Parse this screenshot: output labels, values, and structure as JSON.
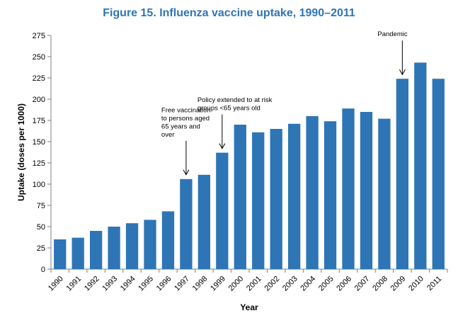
{
  "chart_data": {
    "type": "bar",
    "title": "Figure 15. Influenza vaccine uptake, 1990–2011",
    "xlabel": "Year",
    "ylabel": "Uptake (doses per 1000)",
    "ylim": [
      0,
      275
    ],
    "yticks": [
      0,
      25,
      50,
      75,
      100,
      125,
      150,
      175,
      200,
      225,
      250,
      275
    ],
    "categories": [
      "1990",
      "1991",
      "1992",
      "1993",
      "1994",
      "1995",
      "1996",
      "1997",
      "1998",
      "1999",
      "2000",
      "2001",
      "2002",
      "2003",
      "2004",
      "2005",
      "2006",
      "2007",
      "2008",
      "2009",
      "2010",
      "2011"
    ],
    "values": [
      35,
      37,
      45,
      50,
      54,
      58,
      68,
      106,
      111,
      137,
      170,
      161,
      165,
      171,
      180,
      174,
      189,
      185,
      177,
      224,
      243,
      224
    ],
    "bar_color": "#2E75B6",
    "title_color": "#2E75B6",
    "grid": false,
    "annotations": [
      {
        "category": "1997",
        "lines": [
          "Free vaccination",
          "to persons  aged",
          "65 years and",
          "over"
        ]
      },
      {
        "category": "1999",
        "lines": [
          "Policy extended to at risk",
          "groups <65 years old"
        ]
      },
      {
        "category": "2009",
        "lines": [
          "Pandemic"
        ]
      }
    ]
  }
}
